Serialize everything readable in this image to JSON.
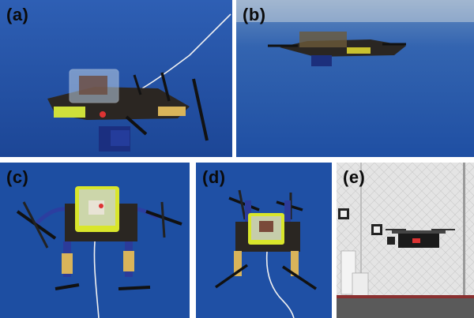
{
  "figure": {
    "panels": [
      {
        "id": "a",
        "label": "(a)",
        "scene": "underwater-drone-side-view"
      },
      {
        "id": "b",
        "label": "(b)",
        "scene": "drone-at-water-surface"
      },
      {
        "id": "c",
        "label": "(c)",
        "scene": "drone-top-view-arms-extended"
      },
      {
        "id": "d",
        "label": "(d)",
        "scene": "drone-top-view-arms-folded"
      },
      {
        "id": "e",
        "label": "(e)",
        "scene": "drone-flying-in-lab"
      }
    ],
    "colors": {
      "pool_blue": "#1f4fa3",
      "pool_deep": "#143a86",
      "frame_yellow": "#d8e62a",
      "carbon": "#2a2622",
      "lab_wall": "#e6e6e6"
    }
  }
}
